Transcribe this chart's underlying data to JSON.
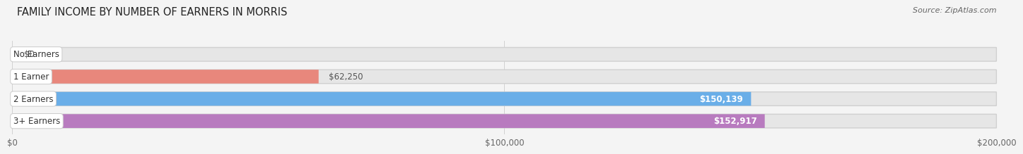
{
  "title": "FAMILY INCOME BY NUMBER OF EARNERS IN MORRIS",
  "source": "Source: ZipAtlas.com",
  "categories": [
    "No Earners",
    "1 Earner",
    "2 Earners",
    "3+ Earners"
  ],
  "values": [
    0,
    62250,
    150139,
    152917
  ],
  "bar_colors": [
    "#f5c98a",
    "#e8877c",
    "#6aaee8",
    "#b87bbf"
  ],
  "label_colors": [
    "#555555",
    "#555555",
    "#ffffff",
    "#ffffff"
  ],
  "xlim": [
    0,
    200000
  ],
  "xtick_labels": [
    "$0",
    "$100,000",
    "$200,000"
  ],
  "value_labels": [
    "$0",
    "$62,250",
    "$150,139",
    "$152,917"
  ],
  "bg_color": "#f4f4f4",
  "bar_bg_color": "#e6e6e6",
  "title_fontsize": 10.5,
  "source_fontsize": 8,
  "tick_fontsize": 8.5,
  "bar_height": 0.62,
  "bar_label_fontsize": 8.5
}
